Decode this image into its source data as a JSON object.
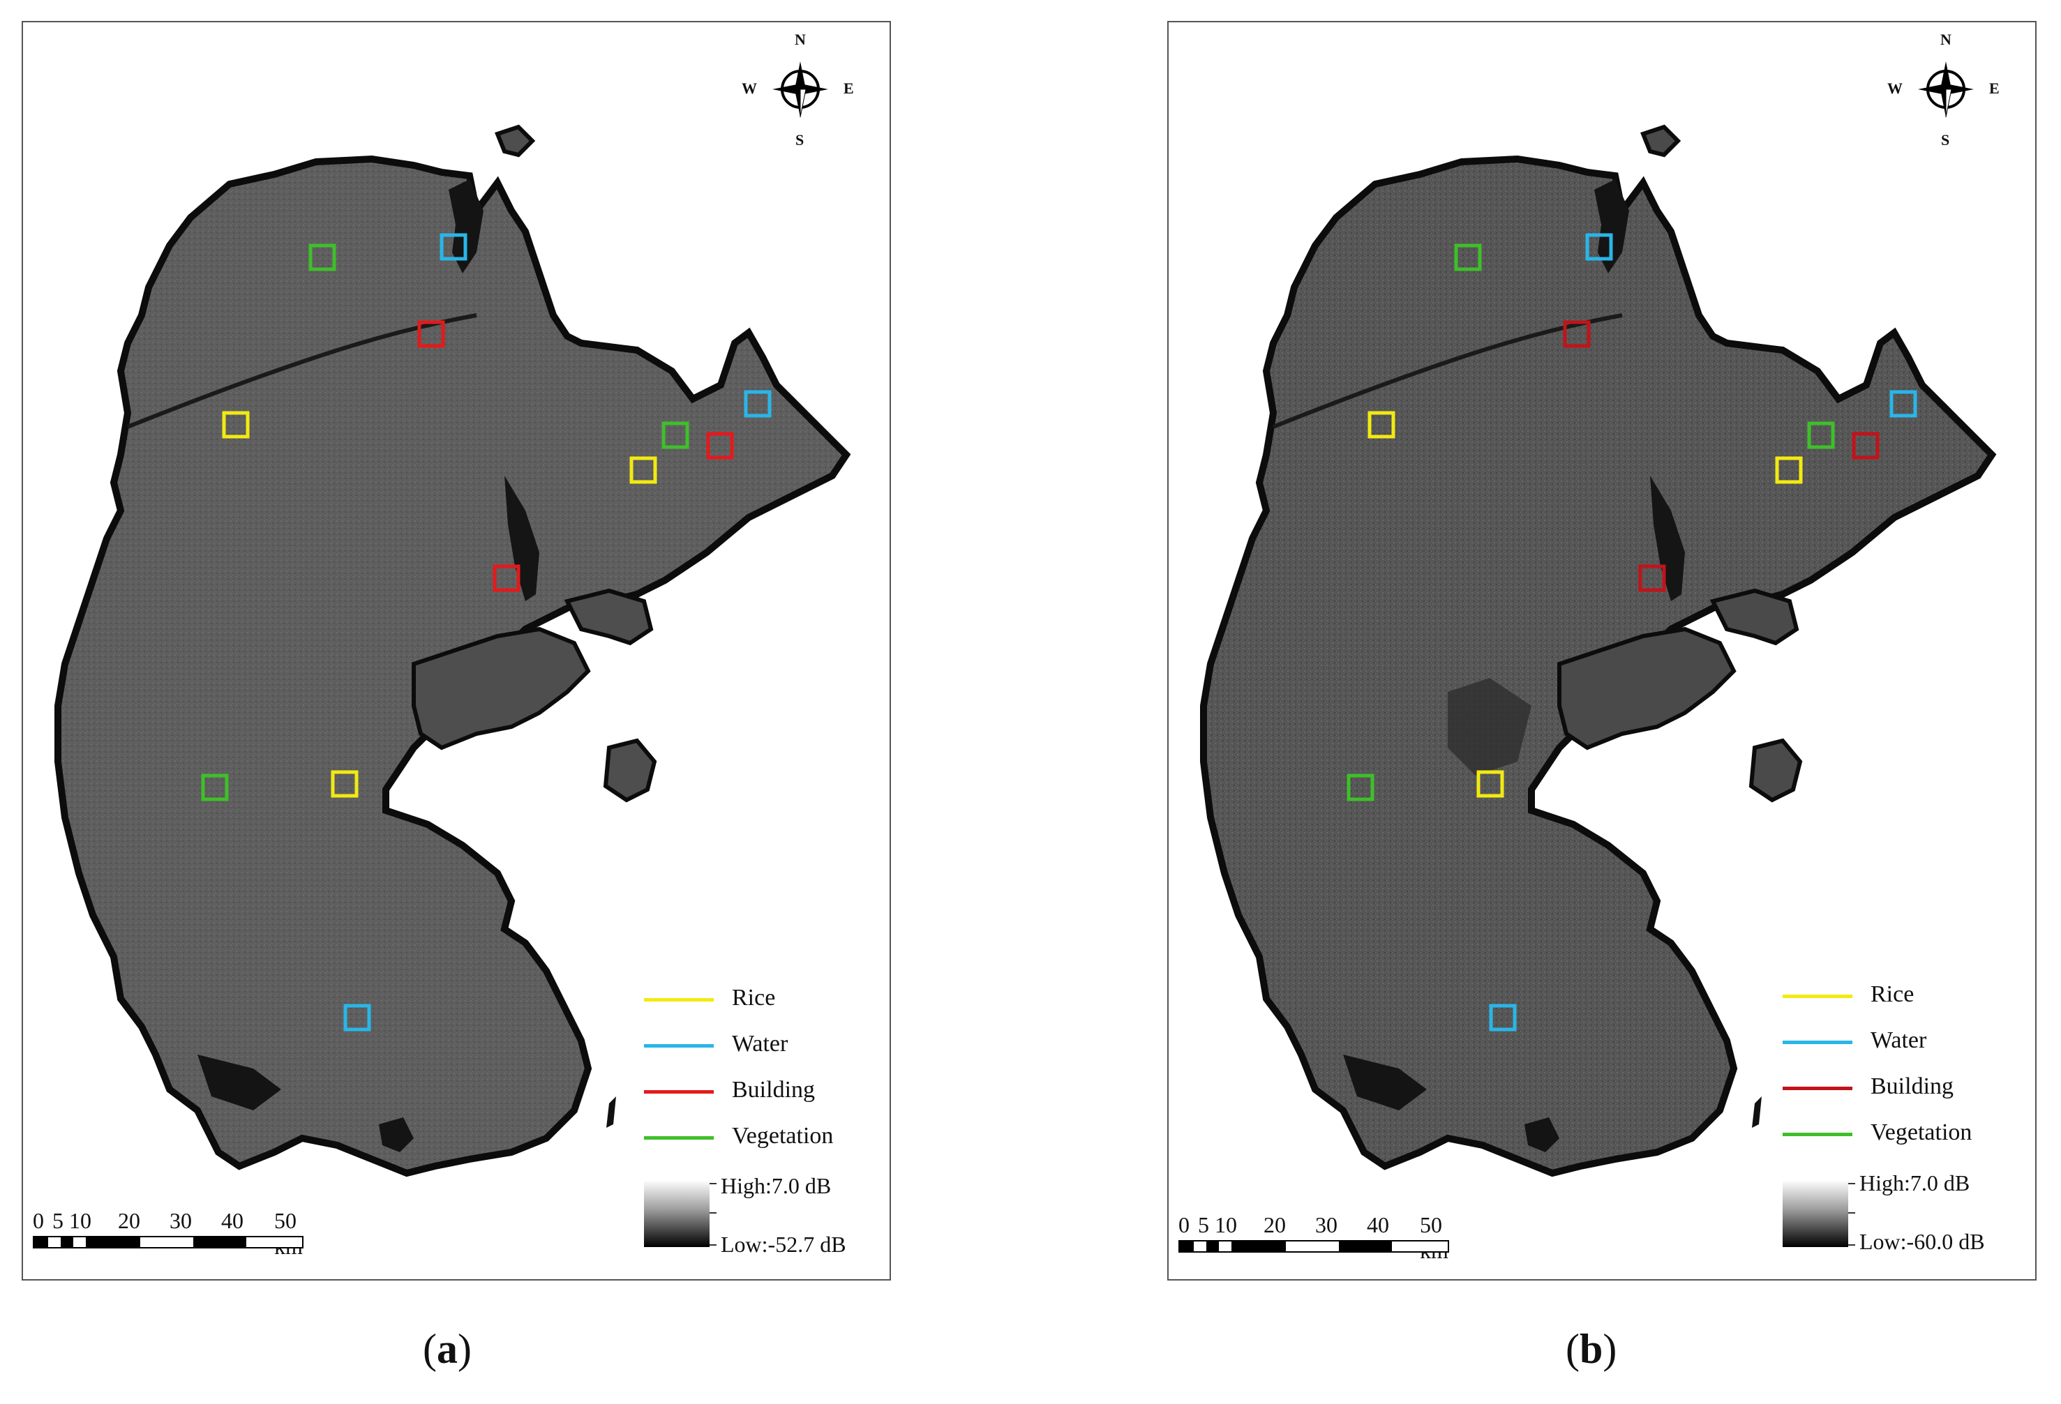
{
  "panels": [
    {
      "id": "a",
      "caption_letter": "a",
      "legend": {
        "items": [
          {
            "label": "Rice",
            "color": "#f2ea12"
          },
          {
            "label": "Water",
            "color": "#29b6e8"
          },
          {
            "label": "Building",
            "color": "#e31a1c"
          },
          {
            "label": "Vegetation",
            "color": "#3fbf2a"
          }
        ],
        "high_label": "High:7.0 dB",
        "low_label": "Low:-52.7 dB"
      }
    },
    {
      "id": "b",
      "caption_letter": "b",
      "legend": {
        "items": [
          {
            "label": "Rice",
            "color": "#f2ea12"
          },
          {
            "label": "Water",
            "color": "#29b6e8"
          },
          {
            "label": "Building",
            "color": "#c0141a"
          },
          {
            "label": "Vegetation",
            "color": "#3fbf2a"
          }
        ],
        "high_label": "High:7.0 dB",
        "low_label": "Low:-60.0 dB"
      }
    }
  ],
  "compass": {
    "n": "N",
    "s": "S",
    "e": "E",
    "w": "W"
  },
  "scale": {
    "ticks": [
      "0",
      "5",
      "10",
      "20",
      "30",
      "40",
      "50 km"
    ]
  },
  "caption": {
    "open": "(",
    "close": ")"
  },
  "colors": {
    "land": "#5c5c5c",
    "water_dark": "#151515"
  }
}
